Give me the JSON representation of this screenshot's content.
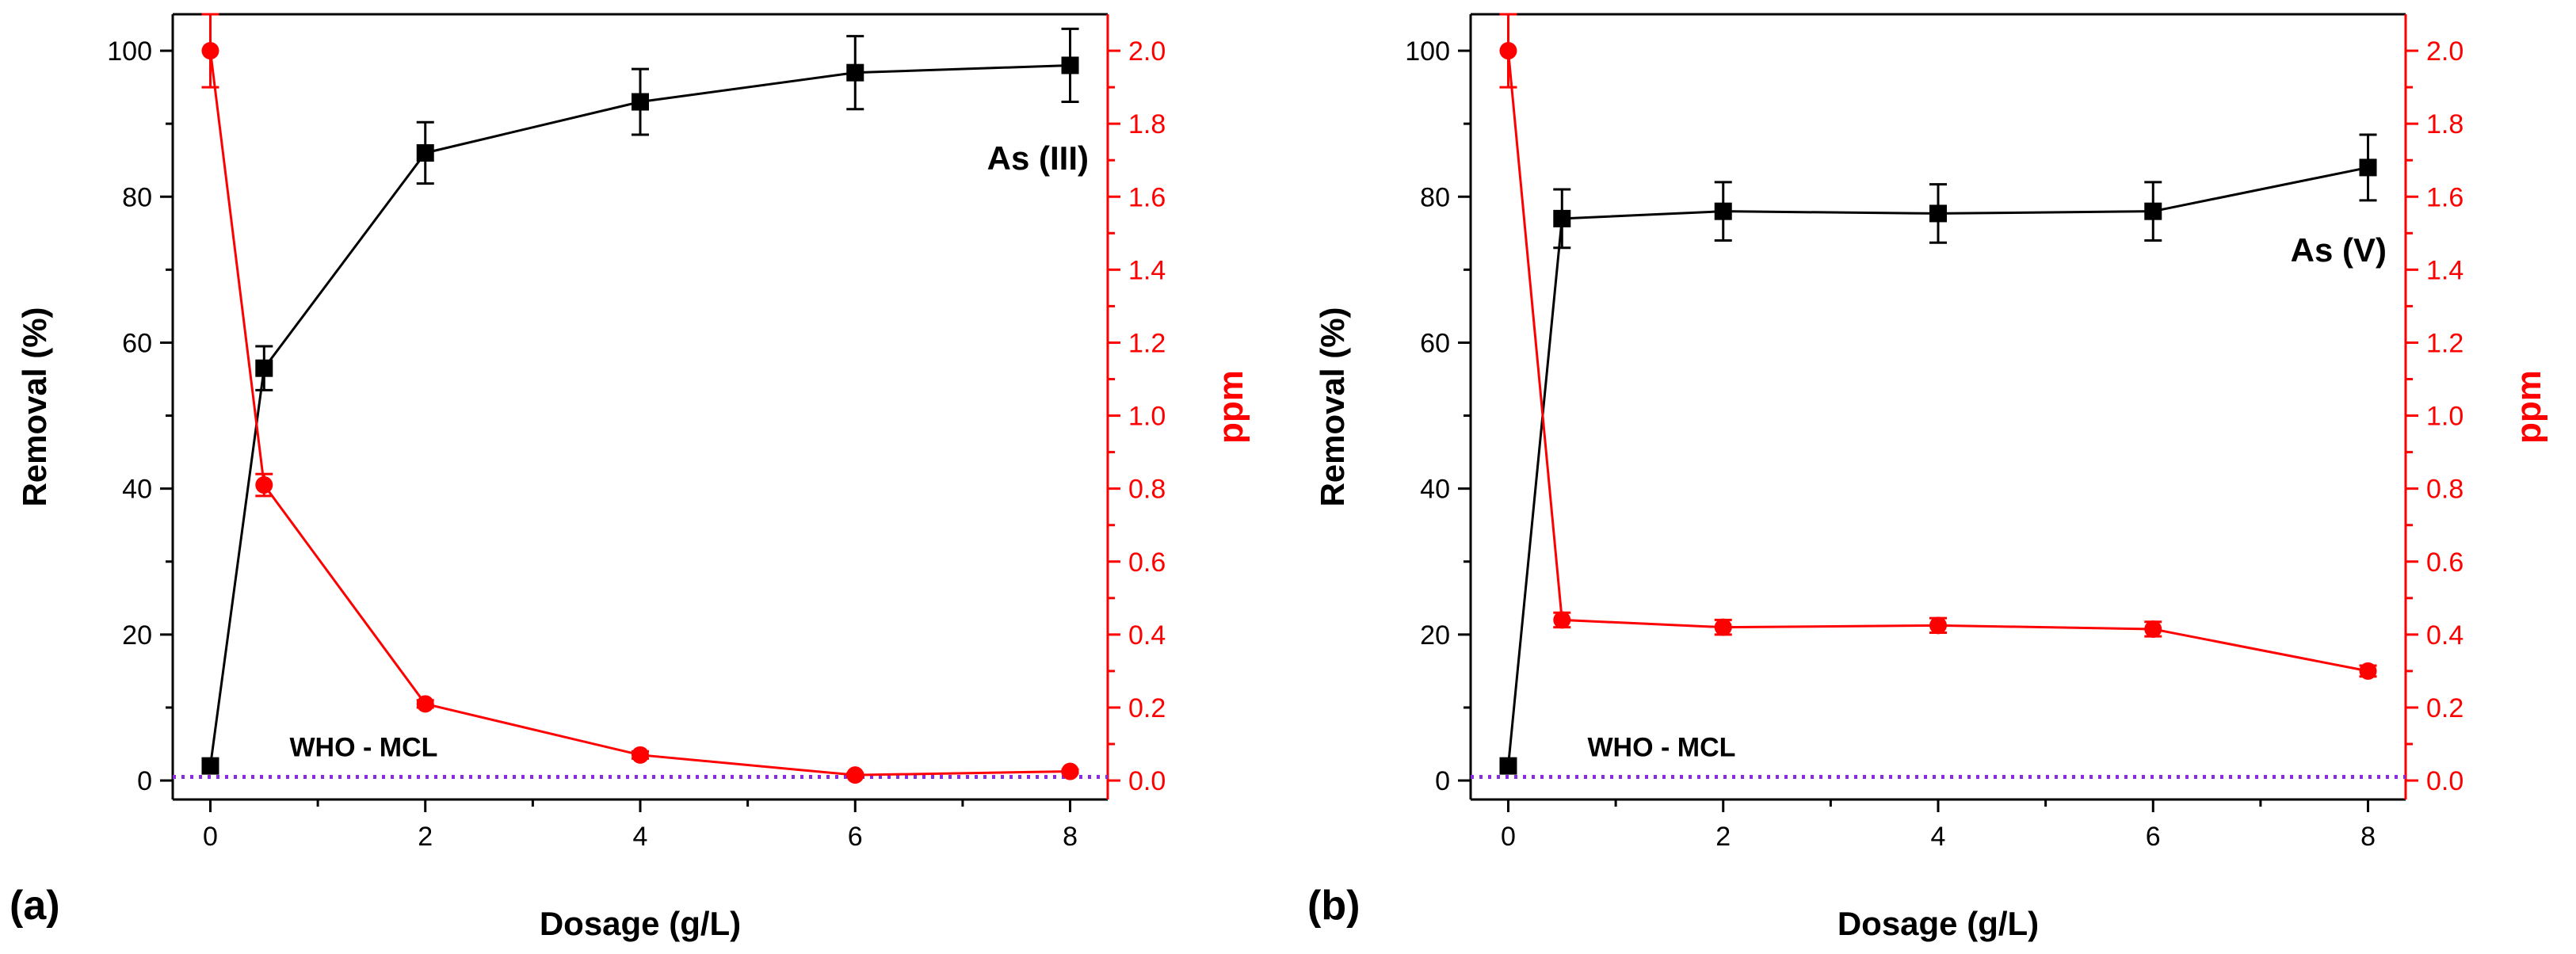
{
  "colors": {
    "removal": "#000000",
    "ppm": "#ff0000",
    "mcl": "#8a2be2",
    "axis_left": "#000000",
    "axis_right": "#ff0000"
  },
  "chart_data": [
    {
      "type": "line",
      "panel_label": "(a)",
      "annotation": "As (III)",
      "mcl_label": "WHO - MCL",
      "xlabel": "Dosage (g/L)",
      "ylabel_left": "Removal (%)",
      "ylabel_right": "ppm",
      "xlim": [
        -0.35,
        8.35
      ],
      "ylim_left": [
        -2.6,
        105
      ],
      "ylim_right": [
        -0.052,
        2.1
      ],
      "x_ticks": [
        0,
        2,
        4,
        6,
        8
      ],
      "x_tick_labels": [
        "0",
        "2",
        "4",
        "6",
        "8"
      ],
      "y_left_ticks": [
        0,
        20,
        40,
        60,
        80,
        100
      ],
      "y_left_tick_labels": [
        "0",
        "20",
        "40",
        "60",
        "80",
        "100"
      ],
      "y_right_ticks": [
        0,
        0.2,
        0.4,
        0.6,
        0.8,
        1.0,
        1.2,
        1.4,
        1.6,
        1.8,
        2.0
      ],
      "y_right_tick_labels": [
        "0.0",
        "0.2",
        "0.4",
        "0.6",
        "0.8",
        "1.0",
        "1.2",
        "1.4",
        "1.6",
        "1.8",
        "2.0"
      ],
      "mcl_ppm": 0.01,
      "grid": false,
      "series": [
        {
          "axis": "left",
          "marker": "square",
          "x": [
            0,
            0.5,
            2,
            4,
            6,
            8
          ],
          "values": [
            2,
            56.5,
            86,
            93,
            97,
            98
          ],
          "errors": [
            0,
            3,
            4.2,
            4.5,
            5,
            5
          ]
        },
        {
          "axis": "right",
          "marker": "circle",
          "x": [
            0,
            0.5,
            2,
            4,
            6,
            8
          ],
          "values": [
            2.0,
            0.81,
            0.21,
            0.07,
            0.015,
            0.025
          ],
          "errors": [
            0.1,
            0.03,
            0.01,
            0.01,
            0.005,
            0.005
          ]
        }
      ]
    },
    {
      "type": "line",
      "panel_label": "(b)",
      "annotation": "As (V)",
      "mcl_label": "WHO - MCL",
      "xlabel": "Dosage (g/L)",
      "ylabel_left": "Removal (%)",
      "ylabel_right": "ppm",
      "xlim": [
        -0.35,
        8.35
      ],
      "ylim_left": [
        -2.6,
        105
      ],
      "ylim_right": [
        -0.052,
        2.1
      ],
      "x_ticks": [
        0,
        2,
        4,
        6,
        8
      ],
      "x_tick_labels": [
        "0",
        "2",
        "4",
        "6",
        "8"
      ],
      "y_left_ticks": [
        0,
        20,
        40,
        60,
        80,
        100
      ],
      "y_left_tick_labels": [
        "0",
        "20",
        "40",
        "60",
        "80",
        "100"
      ],
      "y_right_ticks": [
        0,
        0.2,
        0.4,
        0.6,
        0.8,
        1.0,
        1.2,
        1.4,
        1.6,
        1.8,
        2.0
      ],
      "y_right_tick_labels": [
        "0.0",
        "0.2",
        "0.4",
        "0.6",
        "0.8",
        "1.0",
        "1.2",
        "1.4",
        "1.6",
        "1.8",
        "2.0"
      ],
      "mcl_ppm": 0.01,
      "grid": false,
      "series": [
        {
          "axis": "left",
          "marker": "square",
          "x": [
            0,
            0.5,
            2,
            4,
            6,
            8
          ],
          "values": [
            2,
            77,
            78,
            77.7,
            78,
            84
          ],
          "errors": [
            0,
            4,
            4,
            4,
            4,
            4.5
          ]
        },
        {
          "axis": "right",
          "marker": "circle",
          "x": [
            0,
            0.5,
            2,
            4,
            6,
            8
          ],
          "values": [
            2.0,
            0.44,
            0.42,
            0.425,
            0.415,
            0.3
          ],
          "errors": [
            0.1,
            0.02,
            0.02,
            0.02,
            0.02,
            0.015
          ]
        }
      ]
    }
  ]
}
